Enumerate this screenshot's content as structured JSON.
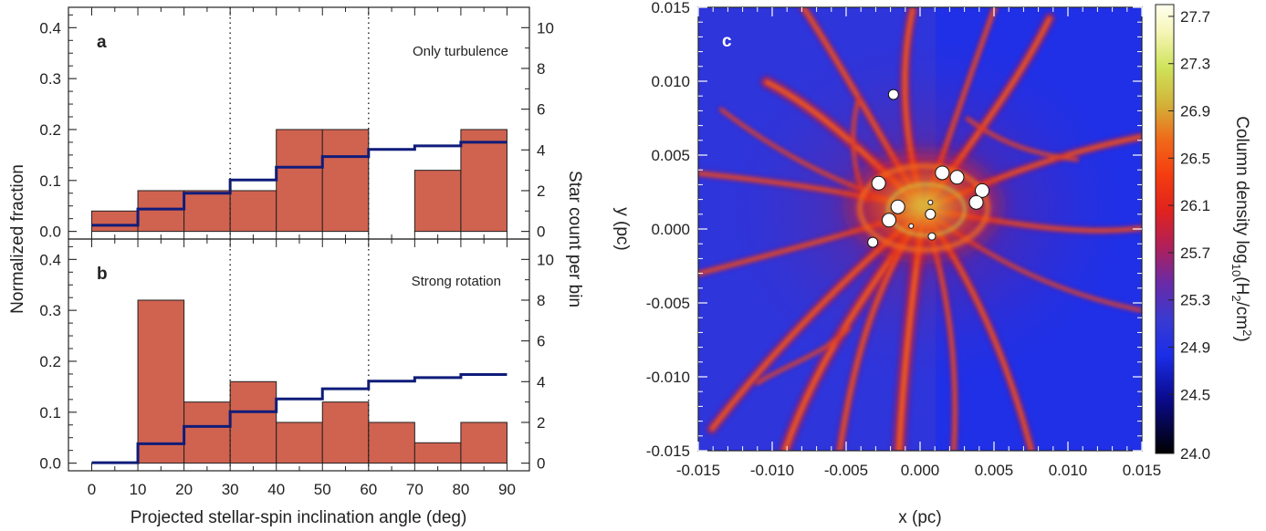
{
  "chart_data": [
    {
      "type": "bar",
      "panel_label": "a",
      "annotation": "Only turbulence",
      "x_bin_edges": [
        0,
        10,
        20,
        30,
        40,
        50,
        60,
        70,
        80,
        90
      ],
      "bar_values": [
        0.04,
        0.08,
        0.08,
        0.08,
        0.2,
        0.2,
        0.0,
        0.12,
        0.2
      ],
      "line_values": [
        0.012,
        0.044,
        0.075,
        0.101,
        0.126,
        0.147,
        0.161,
        0.168,
        0.175
      ],
      "ylabel_left": "Normalized fraction",
      "ylabel_right": "Star count per bin",
      "ylim_left": [
        -0.015,
        0.44
      ],
      "ylim_right": [
        -0.375,
        11.0
      ],
      "yticks_left": [
        "0.0",
        "0.1",
        "0.2",
        "0.3",
        "0.4"
      ],
      "yticks_right": [
        "0",
        "2",
        "4",
        "6",
        "8",
        "10"
      ],
      "vlines": [
        30,
        60
      ],
      "bar_color": "#d06250",
      "line_color": "#0f1c7a"
    },
    {
      "type": "bar",
      "panel_label": "b",
      "annotation": "Strong rotation",
      "x_bin_edges": [
        0,
        10,
        20,
        30,
        40,
        50,
        60,
        70,
        80,
        90
      ],
      "bar_values": [
        0.0,
        0.32,
        0.12,
        0.16,
        0.08,
        0.12,
        0.08,
        0.04,
        0.08
      ],
      "line_values": [
        0.001,
        0.038,
        0.072,
        0.101,
        0.126,
        0.146,
        0.161,
        0.168,
        0.174
      ],
      "xlabel": "Projected stellar-spin inclination angle (deg)",
      "xticks": [
        "0",
        "10",
        "20",
        "30",
        "40",
        "50",
        "60",
        "70",
        "80",
        "90"
      ],
      "ylim_left": [
        -0.015,
        0.44
      ],
      "ylim_right": [
        -0.375,
        11.0
      ],
      "yticks_left": [
        "0.0",
        "0.1",
        "0.2",
        "0.3",
        "0.4"
      ],
      "yticks_right": [
        "0",
        "2",
        "4",
        "6",
        "8",
        "10"
      ],
      "vlines": [
        30,
        60
      ],
      "bar_color": "#d06250",
      "line_color": "#0f1c7a"
    },
    {
      "type": "heatmap",
      "panel_label": "c",
      "xlabel": "x (pc)",
      "ylabel": "y (pc)",
      "xlim": [
        -0.015,
        0.015
      ],
      "ylim": [
        -0.015,
        0.015
      ],
      "xticks": [
        "-0.015",
        "-0.010",
        "-0.005",
        "0.000",
        "0.005",
        "0.010",
        "0.015"
      ],
      "yticks": [
        "-0.015",
        "-0.010",
        "-0.005",
        "0.000",
        "0.005",
        "0.010",
        "0.015"
      ],
      "colorbar": {
        "label": "Column density log",
        "label_sub": "10",
        "label_tail": "(H",
        "label_sub2": "2",
        "label_end": "/cm",
        "label_sup": "2",
        "label_close": ")",
        "range": [
          24.0,
          27.8
        ],
        "ticks": [
          "24.0",
          "24.5",
          "24.9",
          "25.3",
          "25.7",
          "26.1",
          "26.5",
          "26.9",
          "27.3",
          "27.7"
        ],
        "tick_values": [
          24.0,
          24.5,
          24.9,
          25.3,
          25.7,
          26.1,
          26.5,
          26.9,
          27.3,
          27.7
        ]
      },
      "stars": [
        {
          "x": -0.0018,
          "y": 0.0091,
          "size": 1
        },
        {
          "x": -0.0028,
          "y": 0.0031,
          "size": 2
        },
        {
          "x": 0.0015,
          "y": 0.0038,
          "size": 2
        },
        {
          "x": 0.0025,
          "y": 0.0035,
          "size": 2
        },
        {
          "x": 0.0042,
          "y": 0.0026,
          "size": 2
        },
        {
          "x": 0.0038,
          "y": 0.0018,
          "size": 2
        },
        {
          "x": -0.0015,
          "y": 0.0015,
          "size": 2
        },
        {
          "x": -0.0021,
          "y": 0.0006,
          "size": 2
        },
        {
          "x": 0.0007,
          "y": 0.001,
          "size": 1
        },
        {
          "x": -0.0032,
          "y": -0.0009,
          "size": 1
        },
        {
          "x": 0.0008,
          "y": -0.0005,
          "size": 0.5
        },
        {
          "x": -0.0006,
          "y": 0.0002,
          "size": 0.3
        },
        {
          "x": 0.0007,
          "y": 0.0018,
          "size": 0.2
        }
      ]
    }
  ]
}
